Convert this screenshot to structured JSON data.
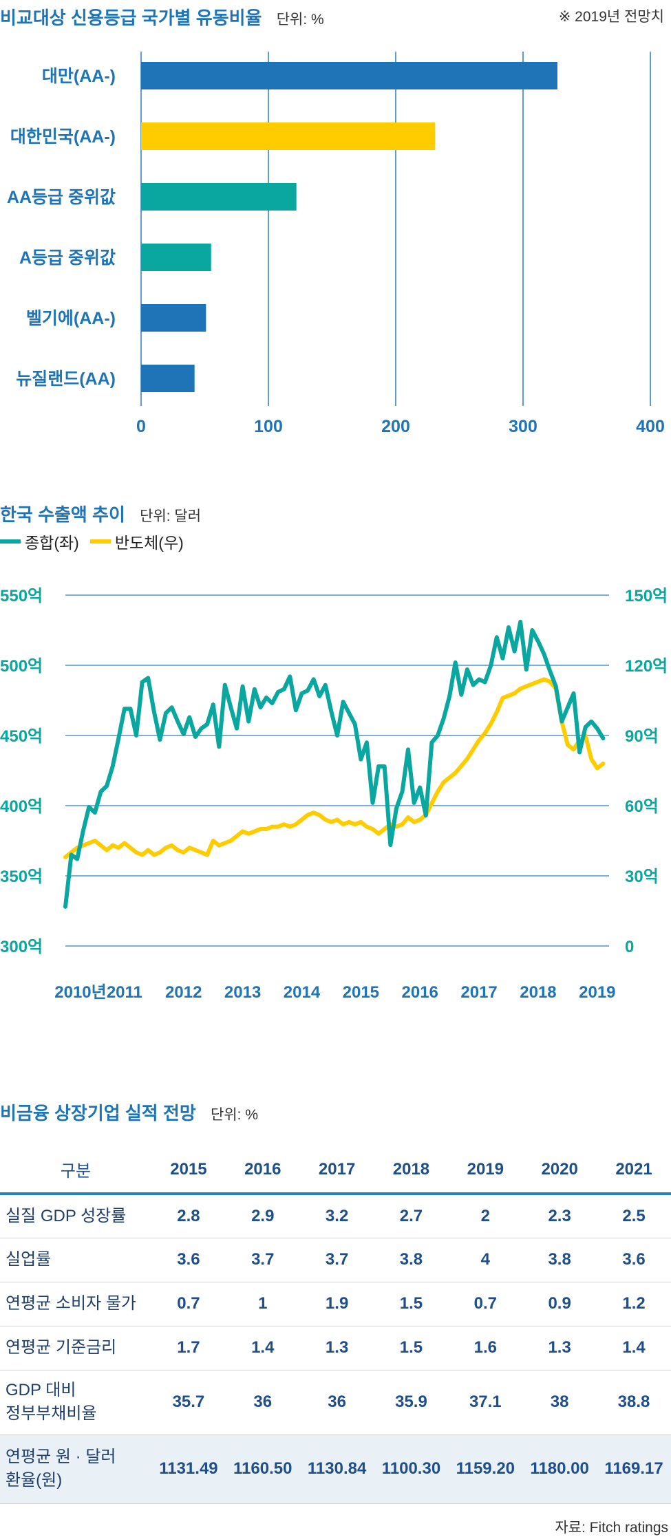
{
  "bar_section": {
    "title": "비교대상 신용등급 국가별 유동비율",
    "unit": "단위: %",
    "note": "※ 2019년 전망치"
  },
  "line_section": {
    "title": "한국 수출액 추이",
    "unit": "단위: 달러"
  },
  "table_section": {
    "title": "비금융 상장기업 실적 전망",
    "unit": "단위: %",
    "source": "자료: Fitch ratings"
  },
  "chart_data": [
    {
      "type": "bar",
      "orientation": "horizontal",
      "categories": [
        "대만(AA-)",
        "대한민국(AA-)",
        "AA등급 중위값",
        "A등급 중위값",
        "벨기에(AA-)",
        "뉴질랜드(AA)"
      ],
      "values": [
        327,
        231,
        122,
        55,
        51,
        42
      ],
      "xlim": [
        0,
        400
      ],
      "xticks": [
        0,
        100,
        200,
        300,
        400
      ],
      "colors": [
        "#1f74b8",
        "#ffcc00",
        "#0aa6a0",
        "#0aa6a0",
        "#1f74b8",
        "#1f74b8"
      ],
      "grid": true
    },
    {
      "type": "line",
      "x_ticks": [
        "2010년",
        "2011",
        "2012",
        "2013",
        "2014",
        "2015",
        "2016",
        "2017",
        "2018",
        "2019"
      ],
      "x_range": [
        2010,
        2019.2
      ],
      "y_left": {
        "ticks": [
          "300억",
          "350억",
          "400억",
          "450억",
          "500억",
          "550억"
        ],
        "range": [
          300,
          550
        ]
      },
      "y_right": {
        "ticks": [
          "0",
          "30억",
          "60억",
          "90억",
          "120억",
          "150억"
        ],
        "range": [
          0,
          150
        ]
      },
      "grid": true,
      "legend_placement": "top-left",
      "series": [
        {
          "name": "종합(좌)",
          "axis": "left",
          "color": "#0aa6a0",
          "x": [
            2010.0,
            2010.1,
            2010.2,
            2010.3,
            2010.4,
            2010.5,
            2010.6,
            2010.7,
            2010.8,
            2010.9,
            2011.0,
            2011.1,
            2011.2,
            2011.3,
            2011.4,
            2011.5,
            2011.6,
            2011.7,
            2011.8,
            2011.9,
            2012.0,
            2012.1,
            2012.2,
            2012.3,
            2012.4,
            2012.5,
            2012.6,
            2012.7,
            2012.8,
            2012.9,
            2013.0,
            2013.1,
            2013.2,
            2013.3,
            2013.4,
            2013.5,
            2013.6,
            2013.7,
            2013.8,
            2013.9,
            2014.0,
            2014.1,
            2014.2,
            2014.3,
            2014.4,
            2014.5,
            2014.6,
            2014.7,
            2014.8,
            2014.9,
            2015.0,
            2015.1,
            2015.2,
            2015.3,
            2015.4,
            2015.5,
            2015.6,
            2015.7,
            2015.8,
            2015.9,
            2016.0,
            2016.1,
            2016.2,
            2016.3,
            2016.4,
            2016.5,
            2016.6,
            2016.7,
            2016.8,
            2016.9,
            2017.0,
            2017.1,
            2017.2,
            2017.3,
            2017.4,
            2017.5,
            2017.6,
            2017.7,
            2017.8,
            2017.9,
            2018.0,
            2018.1,
            2018.2,
            2018.3,
            2018.4,
            2018.5,
            2018.6,
            2018.7,
            2018.8,
            2018.9,
            2019.0,
            2019.1
          ],
          "values": [
            328,
            365,
            362,
            382,
            399,
            395,
            410,
            414,
            428,
            448,
            469,
            469,
            450,
            488,
            491,
            467,
            447,
            466,
            470,
            460,
            451,
            463,
            449,
            455,
            458,
            472,
            442,
            486,
            470,
            455,
            485,
            460,
            483,
            470,
            477,
            473,
            481,
            483,
            492,
            468,
            480,
            482,
            490,
            478,
            486,
            467,
            450,
            474,
            466,
            458,
            433,
            445,
            402,
            428,
            428,
            372,
            398,
            410,
            440,
            402,
            413,
            393,
            445,
            450,
            462,
            478,
            502,
            479,
            497,
            486,
            490,
            488,
            500,
            520,
            505,
            527,
            510,
            531,
            497,
            525,
            517,
            508,
            496,
            485,
            460,
            470,
            480,
            438,
            456,
            460,
            455,
            448
          ]
        },
        {
          "name": "반도체(우)",
          "axis": "right",
          "color": "#ffcc00",
          "x": [
            2010.0,
            2010.1,
            2010.2,
            2010.3,
            2010.4,
            2010.5,
            2010.6,
            2010.7,
            2010.8,
            2010.9,
            2011.0,
            2011.1,
            2011.2,
            2011.3,
            2011.4,
            2011.5,
            2011.6,
            2011.7,
            2011.8,
            2011.9,
            2012.0,
            2012.1,
            2012.2,
            2012.3,
            2012.4,
            2012.5,
            2012.6,
            2012.7,
            2012.8,
            2012.9,
            2013.0,
            2013.1,
            2013.2,
            2013.3,
            2013.4,
            2013.5,
            2013.6,
            2013.7,
            2013.8,
            2013.9,
            2014.0,
            2014.1,
            2014.2,
            2014.3,
            2014.4,
            2014.5,
            2014.6,
            2014.7,
            2014.8,
            2014.9,
            2015.0,
            2015.1,
            2015.2,
            2015.3,
            2015.4,
            2015.5,
            2015.6,
            2015.7,
            2015.8,
            2015.9,
            2016.0,
            2016.1,
            2016.2,
            2016.3,
            2016.4,
            2016.5,
            2016.6,
            2016.7,
            2016.8,
            2016.9,
            2017.0,
            2017.1,
            2017.2,
            2017.3,
            2017.4,
            2017.5,
            2017.6,
            2017.7,
            2017.8,
            2017.9,
            2018.0,
            2018.1,
            2018.2,
            2018.3,
            2018.4,
            2018.5,
            2018.6,
            2018.7,
            2018.8,
            2018.9,
            2019.0,
            2019.1
          ],
          "values": [
            38,
            40,
            42,
            43,
            44,
            45,
            43,
            41,
            43,
            42,
            44,
            42,
            40,
            39,
            41,
            39,
            40,
            42,
            43,
            41,
            40,
            42,
            41,
            40,
            39,
            45,
            43,
            44,
            45,
            47,
            49,
            48,
            49,
            50,
            50,
            51,
            51,
            52,
            51,
            52,
            54,
            56,
            57,
            56,
            54,
            53,
            54,
            52,
            53,
            52,
            53,
            51,
            50,
            48,
            50,
            52,
            51,
            52,
            55,
            53,
            54,
            56,
            61,
            66,
            70,
            72,
            74,
            77,
            80,
            84,
            88,
            91,
            95,
            100,
            106,
            107,
            108,
            110,
            111,
            112,
            113,
            114,
            113,
            110,
            96,
            86,
            84,
            88,
            90,
            80,
            76,
            78
          ]
        }
      ]
    },
    {
      "type": "table",
      "columns": [
        "구분",
        "2015",
        "2016",
        "2017",
        "2018",
        "2019",
        "2020",
        "2021"
      ],
      "rows": [
        {
          "label": [
            "실질 GDP 성장률"
          ],
          "values": [
            "2.8",
            "2.9",
            "3.2",
            "2.7",
            "2",
            "2.3",
            "2.5"
          ]
        },
        {
          "label": [
            "실업률"
          ],
          "values": [
            "3.6",
            "3.7",
            "3.7",
            "3.8",
            "4",
            "3.8",
            "3.6"
          ]
        },
        {
          "label": [
            "연평균 소비자 물가"
          ],
          "values": [
            "0.7",
            "1",
            "1.9",
            "1.5",
            "0.7",
            "0.9",
            "1.2"
          ]
        },
        {
          "label": [
            "연평균 기준금리"
          ],
          "values": [
            "1.7",
            "1.4",
            "1.3",
            "1.5",
            "1.6",
            "1.3",
            "1.4"
          ]
        },
        {
          "label": [
            "GDP 대비",
            "정부부채비율"
          ],
          "values": [
            "35.7",
            "36",
            "36",
            "35.9",
            "37.1",
            "38",
            "38.8"
          ]
        },
        {
          "label": [
            "연평균 원 · 달러",
            "환율(원)"
          ],
          "values": [
            "1131.49",
            "1160.50",
            "1130.84",
            "1100.30",
            "1159.20",
            "1180.00",
            "1169.17"
          ]
        }
      ]
    }
  ]
}
